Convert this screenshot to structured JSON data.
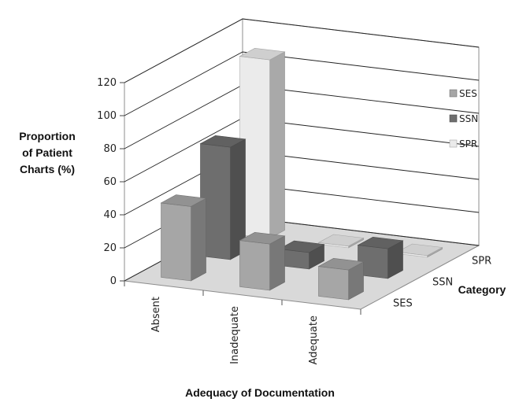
{
  "chart_data": {
    "type": "bar",
    "variant": "3d-column",
    "xlabel": "Adequacy of Documentation",
    "ylabel_lines": [
      "Proportion",
      "of Patient",
      "Charts (%)"
    ],
    "zlabel": "Category",
    "categories": [
      "Absent",
      "Inadequate",
      "Adequate"
    ],
    "depth_categories": [
      "SES",
      "SSN",
      "SPR"
    ],
    "series": [
      {
        "name": "SES",
        "color": "#a6a6a6",
        "values": [
          45,
          28,
          18
        ]
      },
      {
        "name": "SSN",
        "color": "#6e6e6e",
        "values": [
          68,
          10,
          18
        ]
      },
      {
        "name": "SPR",
        "color": "#ebebeb",
        "values": [
          108,
          1,
          1
        ]
      }
    ],
    "ylim": [
      0,
      120
    ],
    "yticks": [
      0,
      20,
      40,
      60,
      80,
      100,
      120
    ],
    "grid": true,
    "legend_position": "right"
  }
}
